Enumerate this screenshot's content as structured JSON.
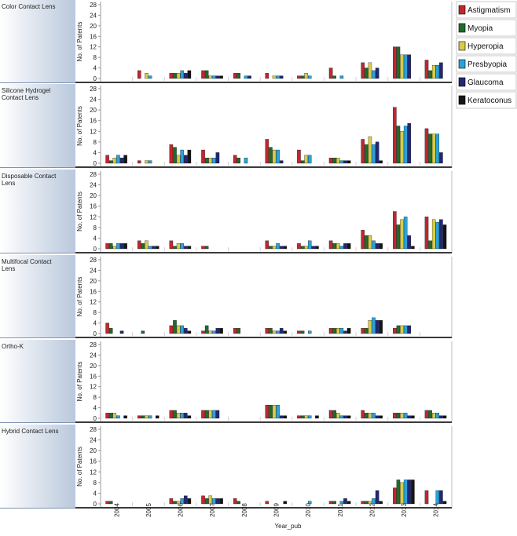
{
  "chart_data": {
    "type": "bar",
    "x_title": "Year_pub",
    "y_title": "No. of Patents",
    "ylim": [
      0,
      28
    ],
    "y_ticks": [
      0,
      4,
      8,
      12,
      16,
      20,
      24,
      28
    ],
    "years": [
      "2004",
      "2005",
      "2006",
      "2007",
      "2008",
      "2009",
      "2010",
      "2011",
      "2012",
      "2013",
      "2014"
    ],
    "series": [
      {
        "name": "Astigmatism",
        "color": "#c0272d"
      },
      {
        "name": "Myopia",
        "color": "#1e6b2a"
      },
      {
        "name": "Hyperopia",
        "color": "#d8cc47"
      },
      {
        "name": "Presbyopia",
        "color": "#2aa3d6"
      },
      {
        "name": "Glaucoma",
        "color": "#232870"
      },
      {
        "name": "Keratoconus",
        "color": "#151515"
      }
    ],
    "legend_position": "top-right",
    "panels": [
      {
        "label": "Color Contact Lens",
        "values": [
          [
            0,
            3,
            2,
            3,
            2,
            2,
            1,
            4,
            6,
            12,
            7
          ],
          [
            0,
            0,
            2,
            3,
            2,
            0,
            1,
            1,
            4,
            12,
            3
          ],
          [
            0,
            2,
            2,
            1,
            0,
            1,
            2,
            0,
            6,
            9,
            5
          ],
          [
            0,
            1,
            3,
            1,
            1,
            1,
            1,
            1,
            3,
            9,
            5
          ],
          [
            0,
            0,
            2,
            1,
            1,
            1,
            0,
            0,
            4,
            9,
            6
          ],
          [
            0,
            0,
            3,
            1,
            0,
            0,
            0,
            0,
            0,
            0,
            0
          ]
        ]
      },
      {
        "label": "Silicone Hydrogel Contact Lens",
        "values": [
          [
            3,
            1,
            7,
            5,
            3,
            9,
            5,
            2,
            9,
            21,
            13
          ],
          [
            1,
            0,
            6,
            2,
            2,
            6,
            1,
            2,
            7,
            14,
            11
          ],
          [
            2,
            1,
            3,
            2,
            0,
            5,
            3,
            2,
            10,
            12,
            11
          ],
          [
            3,
            1,
            5,
            2,
            2,
            5,
            3,
            1,
            7,
            14,
            11
          ],
          [
            2,
            0,
            3,
            4,
            0,
            1,
            0,
            1,
            8,
            15,
            4
          ],
          [
            3,
            0,
            5,
            0,
            0,
            0,
            0,
            1,
            1,
            0,
            0
          ]
        ]
      },
      {
        "label": "Disposable Contact Lens",
        "values": [
          [
            2,
            3,
            3,
            1,
            0,
            3,
            2,
            3,
            7,
            14,
            12
          ],
          [
            2,
            2,
            1,
            1,
            0,
            1,
            1,
            2,
            5,
            9,
            3
          ],
          [
            1,
            3,
            2,
            0,
            0,
            1,
            1,
            2,
            5,
            11,
            11
          ],
          [
            2,
            1,
            2,
            0,
            0,
            2,
            3,
            1,
            3,
            12,
            10
          ],
          [
            2,
            1,
            1,
            0,
            0,
            1,
            1,
            2,
            2,
            5,
            11
          ],
          [
            2,
            1,
            1,
            0,
            0,
            1,
            1,
            2,
            2,
            1,
            9
          ]
        ]
      },
      {
        "label": "Multifocal Contact Lens",
        "values": [
          [
            4,
            0,
            3,
            1,
            2,
            2,
            1,
            2,
            2,
            2,
            0
          ],
          [
            2,
            1,
            5,
            3,
            2,
            2,
            1,
            2,
            2,
            3,
            0
          ],
          [
            0,
            0,
            3,
            1,
            0,
            1,
            0,
            2,
            5,
            3,
            0
          ],
          [
            0,
            0,
            3,
            1,
            0,
            1,
            1,
            2,
            6,
            3,
            0
          ],
          [
            1,
            0,
            2,
            2,
            0,
            2,
            0,
            1,
            5,
            3,
            0
          ],
          [
            0,
            0,
            1,
            2,
            0,
            1,
            0,
            2,
            5,
            0,
            0
          ]
        ]
      },
      {
        "label": "Ortho-K",
        "values": [
          [
            2,
            1,
            3,
            3,
            0,
            5,
            1,
            3,
            3,
            2,
            3
          ],
          [
            2,
            1,
            3,
            3,
            0,
            5,
            1,
            3,
            2,
            2,
            3
          ],
          [
            2,
            1,
            2,
            3,
            0,
            5,
            1,
            2,
            2,
            2,
            2
          ],
          [
            1,
            1,
            2,
            3,
            0,
            5,
            1,
            1,
            2,
            2,
            2
          ],
          [
            0,
            0,
            2,
            3,
            0,
            1,
            0,
            1,
            1,
            1,
            1
          ],
          [
            1,
            1,
            1,
            0,
            0,
            1,
            1,
            1,
            1,
            1,
            1
          ]
        ]
      },
      {
        "label": "Hybrid Contact Lens",
        "values": [
          [
            1,
            0,
            2,
            3,
            2,
            1,
            0,
            1,
            1,
            6,
            5
          ],
          [
            1,
            0,
            1,
            2,
            1,
            0,
            0,
            1,
            1,
            9,
            0
          ],
          [
            0,
            0,
            1,
            3,
            0,
            0,
            0,
            0,
            1,
            8,
            0
          ],
          [
            0,
            0,
            2,
            2,
            0,
            0,
            1,
            1,
            2,
            9,
            5
          ],
          [
            0,
            0,
            3,
            2,
            0,
            0,
            0,
            2,
            5,
            9,
            5
          ],
          [
            0,
            0,
            2,
            2,
            0,
            1,
            0,
            1,
            1,
            9,
            1
          ]
        ]
      }
    ]
  }
}
